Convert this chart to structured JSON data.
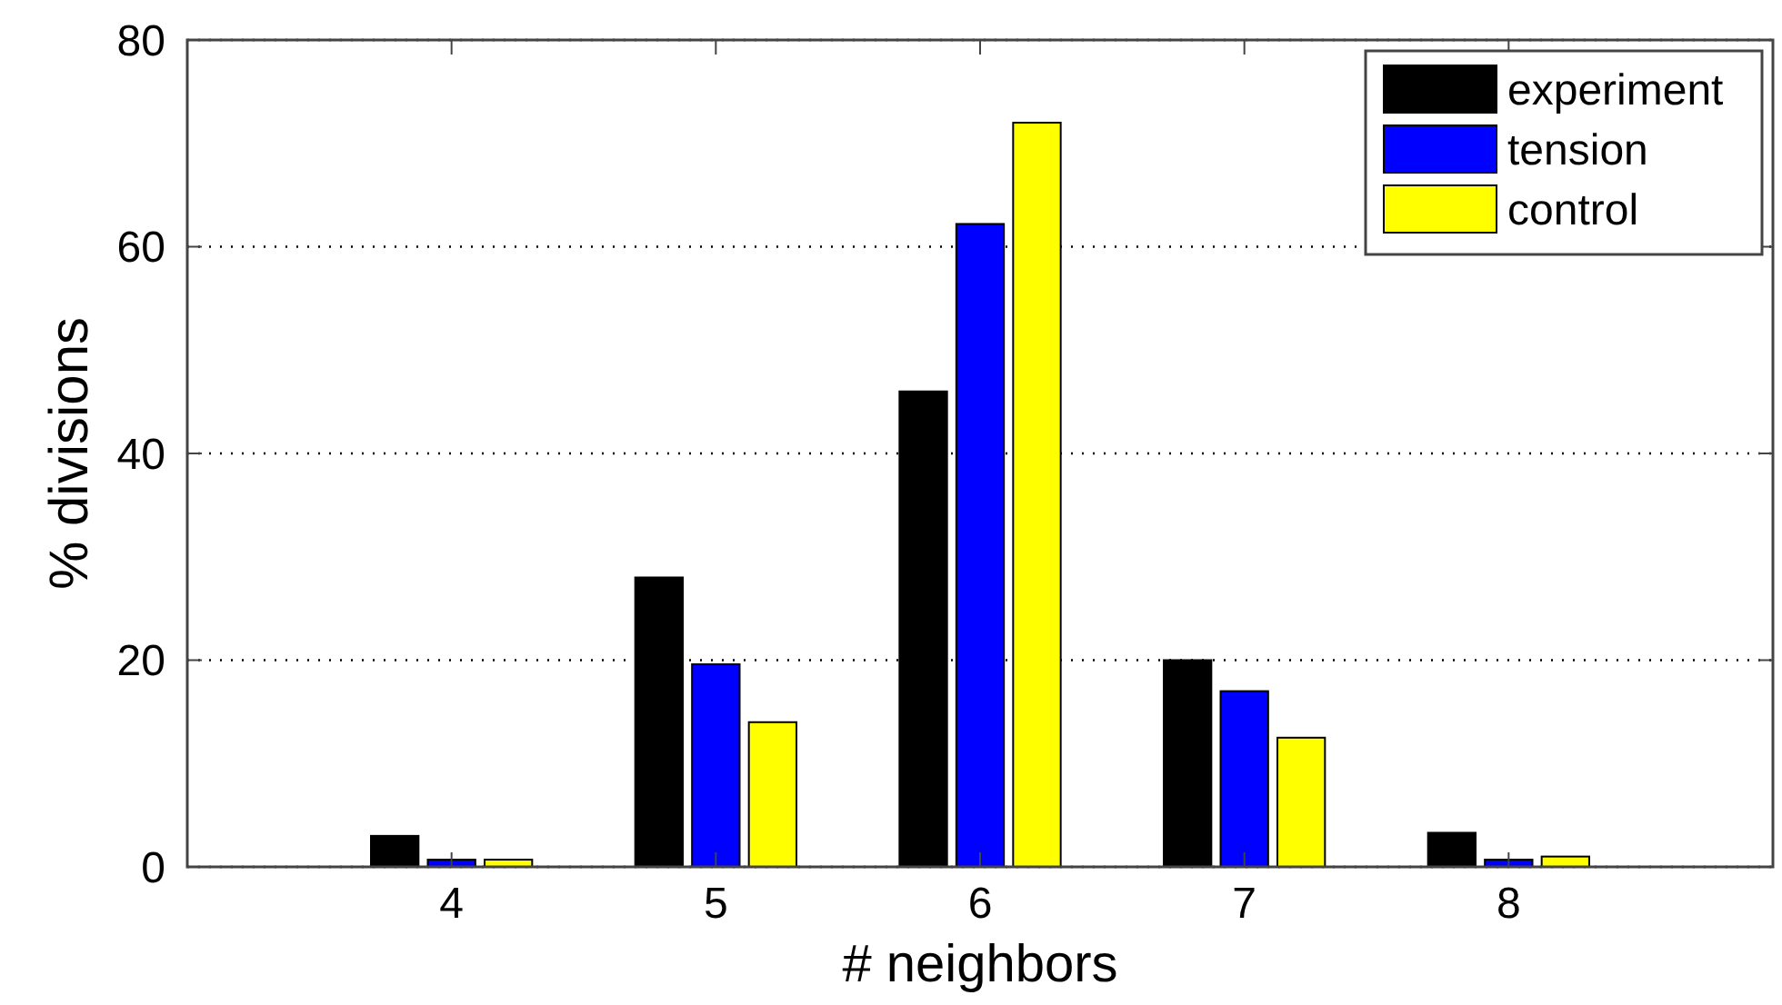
{
  "chart_data": {
    "type": "bar",
    "xlabel": "# neighbors",
    "ylabel": "% divisions",
    "x": [
      4,
      5,
      6,
      7,
      8
    ],
    "xlim": [
      3,
      9
    ],
    "xticks": [
      4,
      5,
      6,
      7,
      8
    ],
    "ylim": [
      0,
      80
    ],
    "yticks": [
      0,
      20,
      40,
      60,
      80
    ],
    "grid": "y",
    "legend": "top right",
    "series": [
      {
        "name": "experiment",
        "color": "#000000",
        "values": [
          3.0,
          28,
          46,
          20,
          3.3
        ]
      },
      {
        "name": "tension",
        "color": "#0000ff",
        "values": [
          0.7,
          19.6,
          62.2,
          17,
          0.7
        ]
      },
      {
        "name": "control",
        "color": "#ffff00",
        "values": [
          0.7,
          14,
          72,
          12.5,
          1.0
        ]
      }
    ]
  }
}
